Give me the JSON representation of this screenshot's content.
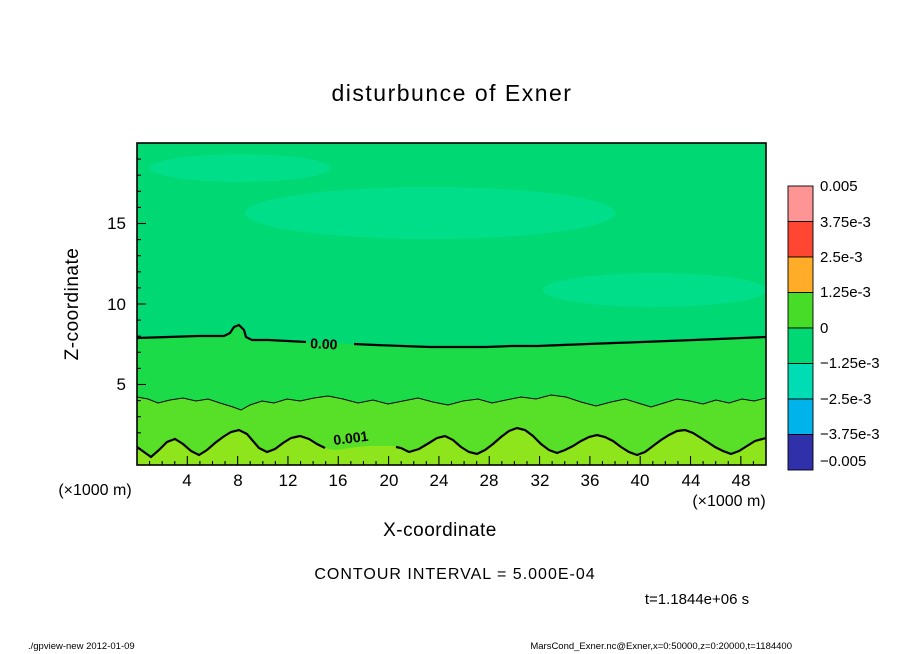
{
  "title": "disturbunce of Exner",
  "axes": {
    "x_label": "X-coordinate",
    "y_label": "Z-coordinate",
    "x_unit_left": "(×1000 m)",
    "x_unit_right": "(×1000 m)",
    "x_ticks": [
      "4",
      "8",
      "12",
      "16",
      "20",
      "24",
      "28",
      "32",
      "36",
      "40",
      "44",
      "48"
    ],
    "y_ticks": [
      "5",
      "10",
      "15"
    ]
  },
  "colorbar": {
    "labels": [
      "0.005",
      "3.75e-3",
      "2.5e-3",
      "1.25e-3",
      "0",
      "−1.25e-3",
      "−2.5e-3",
      "−3.75e-3",
      "−0.005"
    ],
    "colors": [
      "#FF9494",
      "#FF4632",
      "#FFAC28",
      "#46DC28",
      "#00D873",
      "#00DCB4",
      "#00B4EB",
      "#3030AA"
    ]
  },
  "field_colors": {
    "upper": "#00D873",
    "upper_patch": "#00DE8A",
    "band_0_to_5e4": "#1BDB48",
    "band_5e4_to_1e3": "#58DF28",
    "below_1e3": "#8FE51C"
  },
  "contours": {
    "zero_label": "0.00",
    "one_mil_label": "0.001"
  },
  "annotations": {
    "contour_interval": "CONTOUR INTERVAL = 5.000E-04",
    "time": "t=1.1844e+06 s"
  },
  "footer": {
    "left": "./gpview-new  2012-01-09",
    "right": "MarsCond_Exner.nc@Exner,x=0:50000,z=0:20000,t=1184400"
  },
  "chart_data": {
    "type": "heatmap",
    "subtype": "filled-contour",
    "title": "disturbunce of Exner",
    "xlabel": "X-coordinate (×1000 m)",
    "ylabel": "Z-coordinate (×1000 m)",
    "xlim": [
      0,
      50
    ],
    "ylim": [
      0,
      20
    ],
    "x_ticks": [
      4,
      8,
      12,
      16,
      20,
      24,
      28,
      32,
      36,
      40,
      44,
      48
    ],
    "y_ticks": [
      5,
      10,
      15
    ],
    "contour_interval": 0.0005,
    "colorbar_levels": [
      0.005,
      0.00375,
      0.0025,
      0.00125,
      0,
      -0.00125,
      -0.0025,
      -0.00375,
      -0.005
    ],
    "legend_position": "right",
    "grid": false,
    "contours": [
      {
        "level": 0.0,
        "label": "0.00",
        "style": "thick",
        "approx_height_z": 8
      },
      {
        "level": 0.0005,
        "label": null,
        "style": "thin",
        "approx_height_z": 4
      },
      {
        "level": 0.001,
        "label": "0.001",
        "style": "thick",
        "approx_height_z": 1.5
      }
    ],
    "field_summary": "Exner disturbance is slightly negative (between -1.25e-3 and 0) above z≈8 (×1000 m), crosses zero at z≈8, and increases toward ~1e-3 near the surface with wavy undulating contours.",
    "time_seconds": 1184400
  }
}
